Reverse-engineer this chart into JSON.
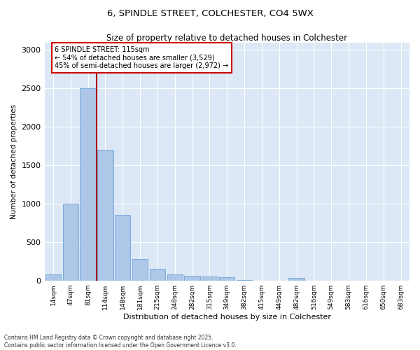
{
  "title1": "6, SPINDLE STREET, COLCHESTER, CO4 5WX",
  "title2": "Size of property relative to detached houses in Colchester",
  "xlabel": "Distribution of detached houses by size in Colchester",
  "ylabel": "Number of detached properties",
  "bins": [
    "14sqm",
    "47sqm",
    "81sqm",
    "114sqm",
    "148sqm",
    "181sqm",
    "215sqm",
    "248sqm",
    "282sqm",
    "315sqm",
    "349sqm",
    "382sqm",
    "415sqm",
    "449sqm",
    "482sqm",
    "516sqm",
    "549sqm",
    "583sqm",
    "616sqm",
    "650sqm",
    "683sqm"
  ],
  "values": [
    75,
    1000,
    2500,
    1700,
    850,
    280,
    155,
    80,
    65,
    50,
    40,
    5,
    0,
    0,
    30,
    0,
    0,
    0,
    0,
    0,
    0
  ],
  "bar_color": "#aec6e8",
  "bar_edge_color": "#5b9bd5",
  "property_bin_index": 3,
  "annotation_title": "6 SPINDLE STREET: 115sqm",
  "annotation_line1": "← 54% of detached houses are smaller (3,529)",
  "annotation_line2": "45% of semi-detached houses are larger (2,972) →",
  "red_line_color": "#aa0000",
  "annotation_box_color": "#ffffff",
  "annotation_box_edge": "#cc0000",
  "footer1": "Contains HM Land Registry data © Crown copyright and database right 2025.",
  "footer2": "Contains public sector information licensed under the Open Government Licence v3.0.",
  "ylim": [
    0,
    3100
  ],
  "yticks": [
    0,
    500,
    1000,
    1500,
    2000,
    2500,
    3000
  ],
  "bg_color": "#dce8f5"
}
